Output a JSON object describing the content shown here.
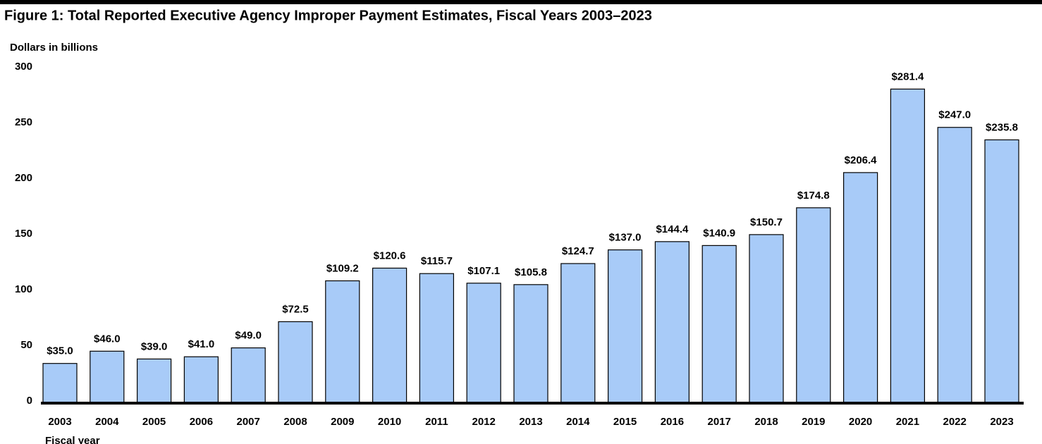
{
  "chart_data": {
    "type": "bar",
    "title": "Figure 1: Total Reported Executive Agency Improper Payment Estimates, Fiscal Years 2003–2023",
    "y_axis_label": "Dollars in billions",
    "x_axis_label": "Fiscal year",
    "categories": [
      "2003",
      "2004",
      "2005",
      "2006",
      "2007",
      "2008",
      "2009",
      "2010",
      "2011",
      "2012",
      "2013",
      "2014",
      "2015",
      "2016",
      "2017",
      "2018",
      "2019",
      "2020",
      "2021",
      "2022",
      "2023"
    ],
    "values": [
      35.0,
      46.0,
      39.0,
      41.0,
      49.0,
      72.5,
      109.2,
      120.6,
      115.7,
      107.1,
      105.8,
      124.7,
      137.0,
      144.4,
      140.9,
      150.7,
      174.8,
      206.4,
      281.4,
      247.0,
      235.8
    ],
    "value_labels": [
      "$35.0",
      "$46.0",
      "$39.0",
      "$41.0",
      "$49.0",
      "$72.5",
      "$109.2",
      "$120.6",
      "$115.7",
      "$107.1",
      "$105.8",
      "$124.7",
      "$137.0",
      "$144.4",
      "$140.9",
      "$150.7",
      "$174.8",
      "$206.4",
      "$281.4",
      "$247.0",
      "$235.8"
    ],
    "color": "#a8cbf8",
    "ylim": [
      0,
      300
    ],
    "yticks": [
      0,
      50,
      100,
      150,
      200,
      250,
      300
    ],
    "grid": false
  }
}
